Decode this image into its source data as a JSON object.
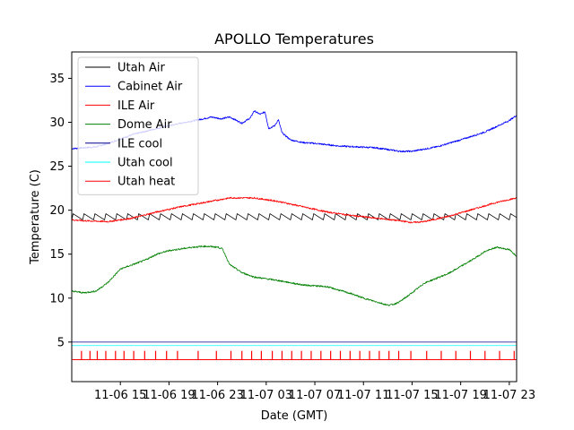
{
  "chart_data": {
    "type": "line",
    "title": "APOLLO Temperatures",
    "xlabel": "Date (GMT)",
    "ylabel": "Temperature (C)",
    "x_unit": "hours since 2023-11-06 00:00 GMT",
    "xlim": [
      11.0,
      47.6
    ],
    "ylim": [
      0.5,
      38
    ],
    "yticks": [
      5,
      10,
      15,
      20,
      25,
      30,
      35
    ],
    "xticks": [
      {
        "value": 15,
        "label": "11-06 15"
      },
      {
        "value": 19,
        "label": "11-06 19"
      },
      {
        "value": 23,
        "label": "11-06 23"
      },
      {
        "value": 27,
        "label": "11-07 03"
      },
      {
        "value": 31,
        "label": "11-07 07"
      },
      {
        "value": 35,
        "label": "11-07 11"
      },
      {
        "value": 39,
        "label": "11-07 15"
      },
      {
        "value": 43,
        "label": "11-07 19"
      },
      {
        "value": 47,
        "label": "11-07 23"
      }
    ],
    "series": [
      {
        "name": "Utah Air",
        "color": "#000000",
        "style": "sawtooth",
        "low": 18.9,
        "high": 19.6,
        "period": 0.9,
        "x": [
          11,
          47.6
        ],
        "values": [
          19.2,
          19.2
        ]
      },
      {
        "name": "Cabinet Air",
        "color": "#0000ff",
        "style": "line",
        "x": [
          11,
          13,
          14,
          16,
          18,
          20,
          21.5,
          22.5,
          23.3,
          24,
          25,
          25.7,
          26,
          26.5,
          26.9,
          27.2,
          27.7,
          28,
          28.3,
          29,
          30,
          31,
          33,
          36,
          38,
          39,
          41,
          43,
          45,
          47,
          47.6
        ],
        "values": [
          27.0,
          27.2,
          27.6,
          28.6,
          29.3,
          29.9,
          30.3,
          30.6,
          30.4,
          30.6,
          29.9,
          30.5,
          31.3,
          30.9,
          31.2,
          29.3,
          29.6,
          30.3,
          28.8,
          28.0,
          27.7,
          27.6,
          27.3,
          27.1,
          26.7,
          26.7,
          27.2,
          28.0,
          28.9,
          30.2,
          30.8
        ]
      },
      {
        "name": "ILE Air",
        "color": "#ff0000",
        "style": "line",
        "x": [
          11,
          12,
          14,
          16,
          18,
          20,
          22,
          24,
          26,
          28,
          30,
          32,
          34,
          36,
          38,
          39,
          40,
          42,
          44,
          46,
          47.6
        ],
        "values": [
          18.9,
          18.8,
          18.7,
          19.1,
          19.8,
          20.4,
          20.9,
          21.4,
          21.4,
          21.0,
          20.4,
          19.8,
          19.4,
          19.1,
          18.8,
          18.6,
          18.7,
          19.3,
          20.1,
          20.9,
          21.4
        ]
      },
      {
        "name": "Dome Air",
        "color": "#008000",
        "style": "line",
        "x": [
          11,
          12,
          13,
          14,
          15,
          16,
          17,
          18,
          19,
          20,
          21,
          22,
          23,
          23.4,
          24,
          25,
          26,
          28,
          30,
          32,
          34,
          35,
          36,
          37,
          37.5,
          38,
          39,
          40,
          42,
          44,
          45,
          46,
          47,
          47.6
        ],
        "values": [
          10.8,
          10.6,
          10.8,
          11.8,
          13.3,
          13.8,
          14.3,
          15.0,
          15.4,
          15.6,
          15.8,
          15.9,
          15.8,
          15.6,
          13.8,
          12.9,
          12.4,
          12.0,
          11.5,
          11.3,
          10.5,
          10.0,
          9.6,
          9.2,
          9.3,
          9.6,
          10.6,
          11.7,
          12.8,
          14.4,
          15.3,
          15.8,
          15.5,
          14.8
        ]
      },
      {
        "name": "ILE cool",
        "color": "#00008b",
        "style": "constant",
        "x": [
          11,
          47.6
        ],
        "values": [
          5.0,
          5.0
        ]
      },
      {
        "name": "Utah cool",
        "color": "#00ffff",
        "style": "constant",
        "x": [
          11,
          47.6
        ],
        "values": [
          4.6,
          4.6
        ]
      },
      {
        "name": "Utah heat",
        "color": "#ff0000",
        "style": "pulses",
        "base": 3.0,
        "peak": 4.0,
        "x": [
          11,
          11.8,
          12.5,
          13.1,
          13.8,
          14.6,
          15.3,
          16.1,
          17.0,
          17.9,
          18.8,
          19.7,
          21.4,
          22.9,
          24.1,
          25.0,
          25.8,
          26.6,
          27.5,
          28.3,
          29.1,
          29.9,
          30.7,
          31.5,
          32.3,
          33.1,
          33.9,
          34.7,
          35.5,
          36.3,
          37.1,
          37.9,
          38.9,
          40.2,
          41.4,
          42.6,
          43.8,
          45.0,
          46.2,
          47.4
        ],
        "values": [
          4,
          4,
          4,
          4,
          4,
          4,
          4,
          4,
          4,
          4,
          4,
          4,
          4,
          4,
          4,
          4,
          4,
          4,
          4,
          4,
          4,
          4,
          4,
          4,
          4,
          4,
          4,
          4,
          4,
          4,
          4,
          4,
          4,
          4,
          4,
          4,
          4,
          4,
          4,
          4
        ]
      }
    ],
    "legend": {
      "position": "top-left"
    }
  }
}
